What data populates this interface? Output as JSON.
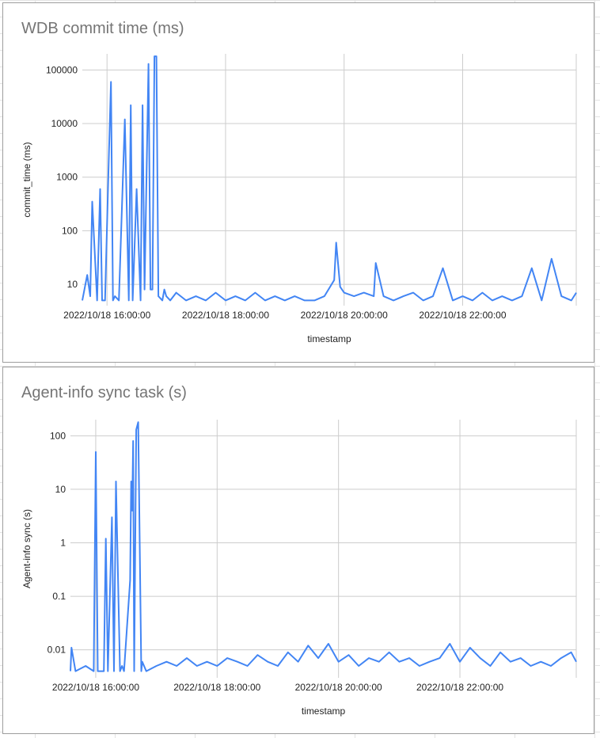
{
  "colors": {
    "series": "#4285f4",
    "grid": "#cccccc",
    "title": "#757575"
  },
  "chart_data": [
    {
      "type": "line",
      "title": "WDB commit time  (ms)",
      "xlabel": "timestamp",
      "ylabel": "commit_time (ms)",
      "y_scale": "log",
      "ylim": [
        4,
        200000
      ],
      "y_ticks": [
        10,
        100,
        1000,
        10000,
        100000
      ],
      "y_tick_labels": [
        "10",
        "100",
        "1000",
        "10000",
        "100000"
      ],
      "x_range": [
        "2022/10/18 15:35:00",
        "2022/10/18 23:55:00"
      ],
      "x_tick_labels": [
        "2022/10/18 16:00:00",
        "2022/10/18 18:00:00",
        "2022/10/18 20:00:00",
        "2022/10/18 22:00:00"
      ],
      "grid": true,
      "legend": "none",
      "series": [
        {
          "x": [
            "2022/10/18 15:35:00",
            "2022/10/18 15:40:00",
            "2022/10/18 15:43:00",
            "2022/10/18 15:45:00",
            "2022/10/18 15:50:00",
            "2022/10/18 15:53:00",
            "2022/10/18 15:55:00",
            "2022/10/18 15:58:00",
            "2022/10/18 16:02:00",
            "2022/10/18 16:04:00",
            "2022/10/18 16:06:00",
            "2022/10/18 16:08:00",
            "2022/10/18 16:12:00",
            "2022/10/18 16:18:00",
            "2022/10/18 16:22:00",
            "2022/10/18 16:24:00",
            "2022/10/18 16:26:00",
            "2022/10/18 16:30:00",
            "2022/10/18 16:34:00",
            "2022/10/18 16:36:00",
            "2022/10/18 16:38:00",
            "2022/10/18 16:42:00",
            "2022/10/18 16:44:00",
            "2022/10/18 16:46:00",
            "2022/10/18 16:48:00",
            "2022/10/18 16:50:00",
            "2022/10/18 16:52:00",
            "2022/10/18 16:56:00",
            "2022/10/18 16:58:00",
            "2022/10/18 17:00:00",
            "2022/10/18 17:04:00",
            "2022/10/18 17:10:00",
            "2022/10/18 17:20:00",
            "2022/10/18 17:30:00",
            "2022/10/18 17:40:00",
            "2022/10/18 17:50:00",
            "2022/10/18 18:00:00",
            "2022/10/18 18:10:00",
            "2022/10/18 18:20:00",
            "2022/10/18 18:30:00",
            "2022/10/18 18:40:00",
            "2022/10/18 18:50:00",
            "2022/10/18 19:00:00",
            "2022/10/18 19:10:00",
            "2022/10/18 19:20:00",
            "2022/10/18 19:30:00",
            "2022/10/18 19:40:00",
            "2022/10/18 19:50:00",
            "2022/10/18 19:52:00",
            "2022/10/18 19:56:00",
            "2022/10/18 20:00:00",
            "2022/10/18 20:10:00",
            "2022/10/18 20:20:00",
            "2022/10/18 20:30:00",
            "2022/10/18 20:32:00",
            "2022/10/18 20:40:00",
            "2022/10/18 20:50:00",
            "2022/10/18 21:00:00",
            "2022/10/18 21:10:00",
            "2022/10/18 21:20:00",
            "2022/10/18 21:30:00",
            "2022/10/18 21:40:00",
            "2022/10/18 21:50:00",
            "2022/10/18 22:00:00",
            "2022/10/18 22:10:00",
            "2022/10/18 22:20:00",
            "2022/10/18 22:30:00",
            "2022/10/18 22:40:00",
            "2022/10/18 22:50:00",
            "2022/10/18 23:00:00",
            "2022/10/18 23:10:00",
            "2022/10/18 23:20:00",
            "2022/10/18 23:30:00",
            "2022/10/18 23:40:00",
            "2022/10/18 23:50:00",
            "2022/10/18 23:55:00"
          ],
          "y": [
            5,
            15,
            6,
            350,
            5,
            600,
            5,
            5,
            3000,
            60000,
            5,
            6,
            5,
            12000,
            5,
            22000,
            5,
            600,
            5,
            22000,
            8,
            130000,
            8,
            8,
            180000,
            180000,
            6,
            5,
            8,
            6,
            5,
            7,
            5,
            6,
            5,
            7,
            5,
            6,
            5,
            7,
            5,
            6,
            5,
            6,
            5,
            5,
            6,
            12,
            60,
            9,
            7,
            6,
            7,
            6,
            25,
            6,
            5,
            6,
            7,
            5,
            6,
            20,
            5,
            6,
            5,
            7,
            5,
            6,
            5,
            6,
            20,
            5,
            30,
            6,
            5,
            7
          ]
        }
      ]
    },
    {
      "type": "line",
      "title": "Agent-info sync task (s)",
      "xlabel": "timestamp",
      "ylabel": "Agent-info sync (s)",
      "y_scale": "log",
      "ylim": [
        0.003,
        200
      ],
      "y_ticks": [
        0.01,
        0.1,
        1,
        10,
        100
      ],
      "y_tick_labels": [
        "0.01",
        "0.1",
        "1",
        "10",
        "100"
      ],
      "x_range": [
        "2022/10/18 15:35:00",
        "2022/10/18 23:55:00"
      ],
      "x_tick_labels": [
        "2022/10/18 16:00:00",
        "2022/10/18 18:00:00",
        "2022/10/18 20:00:00",
        "2022/10/18 22:00:00"
      ],
      "grid": true,
      "legend": "none",
      "series": [
        {
          "x": [
            "2022/10/18 15:35:00",
            "2022/10/18 15:36:00",
            "2022/10/18 15:40:00",
            "2022/10/18 15:50:00",
            "2022/10/18 15:58:00",
            "2022/10/18 16:00:00",
            "2022/10/18 16:02:00",
            "2022/10/18 16:08:00",
            "2022/10/18 16:10:00",
            "2022/10/18 16:12:00",
            "2022/10/18 16:16:00",
            "2022/10/18 16:18:00",
            "2022/10/18 16:20:00",
            "2022/10/18 16:24:00",
            "2022/10/18 16:26:00",
            "2022/10/18 16:28:00",
            "2022/10/18 16:34:00",
            "2022/10/18 16:35:00",
            "2022/10/18 16:36:00",
            "2022/10/18 16:37:00",
            "2022/10/18 16:38:00",
            "2022/10/18 16:40:00",
            "2022/10/18 16:42:00",
            "2022/10/18 16:45:00",
            "2022/10/18 16:46:00",
            "2022/10/18 16:50:00",
            "2022/10/18 17:00:00",
            "2022/10/18 17:10:00",
            "2022/10/18 17:20:00",
            "2022/10/18 17:30:00",
            "2022/10/18 17:40:00",
            "2022/10/18 17:50:00",
            "2022/10/18 18:00:00",
            "2022/10/18 18:10:00",
            "2022/10/18 18:20:00",
            "2022/10/18 18:30:00",
            "2022/10/18 18:40:00",
            "2022/10/18 18:50:00",
            "2022/10/18 19:00:00",
            "2022/10/18 19:10:00",
            "2022/10/18 19:20:00",
            "2022/10/18 19:30:00",
            "2022/10/18 19:40:00",
            "2022/10/18 19:50:00",
            "2022/10/18 20:00:00",
            "2022/10/18 20:10:00",
            "2022/10/18 20:20:00",
            "2022/10/18 20:30:00",
            "2022/10/18 20:40:00",
            "2022/10/18 20:50:00",
            "2022/10/18 21:00:00",
            "2022/10/18 21:10:00",
            "2022/10/18 21:20:00",
            "2022/10/18 21:30:00",
            "2022/10/18 21:40:00",
            "2022/10/18 21:50:00",
            "2022/10/18 22:00:00",
            "2022/10/18 22:10:00",
            "2022/10/18 22:20:00",
            "2022/10/18 22:30:00",
            "2022/10/18 22:40:00",
            "2022/10/18 22:50:00",
            "2022/10/18 23:00:00",
            "2022/10/18 23:10:00",
            "2022/10/18 23:20:00",
            "2022/10/18 23:30:00",
            "2022/10/18 23:40:00",
            "2022/10/18 23:50:00",
            "2022/10/18 23:55:00"
          ],
          "y": [
            0.004,
            0.011,
            0.004,
            0.005,
            0.004,
            50,
            0.004,
            0.004,
            1.2,
            0.004,
            3,
            0.004,
            14,
            0.004,
            0.005,
            0.004,
            0.2,
            14,
            4,
            80,
            0.004,
            130,
            180,
            0.004,
            0.006,
            0.004,
            0.005,
            0.006,
            0.005,
            0.007,
            0.005,
            0.006,
            0.005,
            0.007,
            0.006,
            0.005,
            0.008,
            0.006,
            0.005,
            0.009,
            0.006,
            0.012,
            0.007,
            0.013,
            0.006,
            0.008,
            0.005,
            0.007,
            0.006,
            0.009,
            0.006,
            0.007,
            0.005,
            0.006,
            0.007,
            0.013,
            0.006,
            0.011,
            0.007,
            0.005,
            0.009,
            0.006,
            0.007,
            0.005,
            0.006,
            0.005,
            0.007,
            0.009,
            0.006
          ]
        }
      ]
    }
  ]
}
